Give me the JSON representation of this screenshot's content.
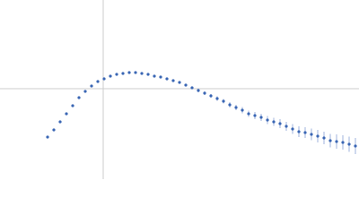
{
  "chart_data": {
    "type": "scatter",
    "color": "#3a66b4",
    "error_color": "#9fb3dc",
    "xlim": [
      0,
      400
    ],
    "ylim": [
      0,
      200
    ],
    "crosshair": {
      "x": 115,
      "y": 101
    },
    "x": [
      53,
      60,
      67,
      74,
      81,
      88,
      95,
      102,
      109,
      116,
      123,
      130,
      137,
      144,
      151,
      158,
      165,
      172,
      179,
      186,
      193,
      200,
      207,
      214,
      221,
      228,
      235,
      242,
      249,
      256,
      263,
      270,
      277,
      284,
      291,
      298,
      305,
      312,
      319,
      326,
      333,
      340,
      347,
      354,
      361,
      368,
      375,
      382,
      389,
      396
    ],
    "values": [
      47,
      55,
      64,
      73,
      82,
      91,
      98,
      104,
      109,
      112,
      115,
      117,
      118,
      119,
      119,
      118,
      117,
      115,
      114,
      112,
      110,
      108,
      105,
      102,
      99,
      96,
      93,
      90,
      87,
      83,
      80,
      77,
      73,
      71,
      69,
      66,
      64,
      62,
      59,
      56,
      53,
      52,
      50,
      48,
      46,
      43,
      42,
      41,
      39,
      37
    ],
    "errors": [
      0.5,
      0.5,
      0.5,
      0.5,
      0.5,
      0.5,
      0.5,
      0.5,
      0.5,
      0.5,
      0.5,
      0.5,
      0.5,
      1,
      1,
      1,
      1,
      1,
      1,
      1,
      1,
      1.5,
      1.5,
      1.5,
      2,
      2,
      2,
      2.5,
      2.5,
      3,
      3,
      3.5,
      3.5,
      4,
      4,
      4.5,
      4.5,
      5,
      5,
      5.5,
      6,
      6,
      6.5,
      7,
      7,
      7.5,
      8,
      8,
      8.5,
      9
    ]
  }
}
